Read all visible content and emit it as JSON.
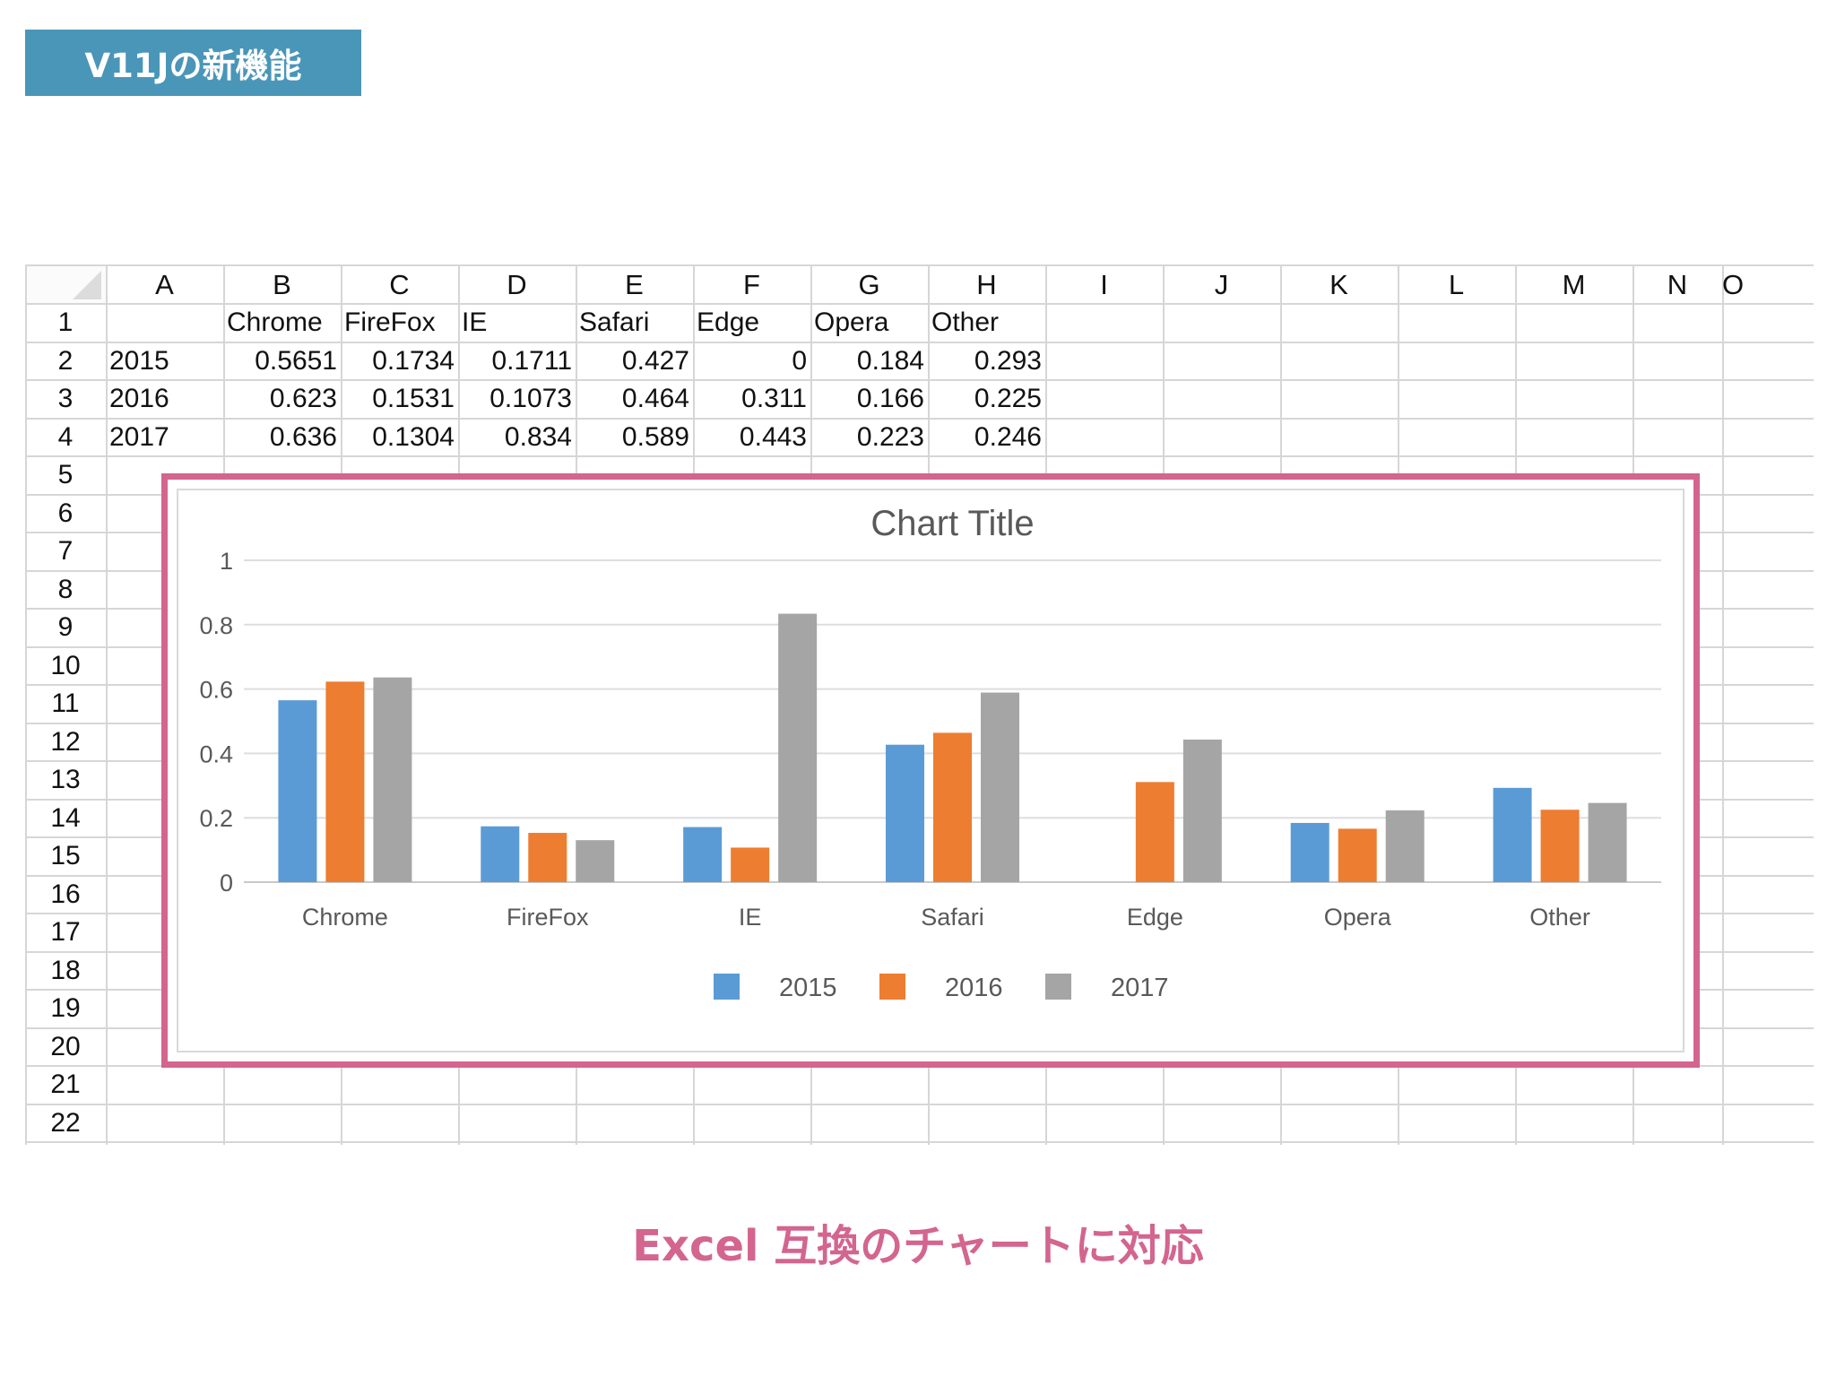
{
  "badge": {
    "label": "V11Jの新機能"
  },
  "sheet": {
    "columns": [
      "A",
      "B",
      "C",
      "D",
      "E",
      "F",
      "G",
      "H",
      "I",
      "J",
      "K",
      "L",
      "M",
      "N",
      "O"
    ],
    "rows": [
      "1",
      "2",
      "3",
      "4",
      "5",
      "6",
      "7",
      "8",
      "9",
      "10",
      "11",
      "12",
      "13",
      "14",
      "15",
      "16",
      "17",
      "18",
      "19",
      "20",
      "21",
      "22"
    ],
    "header_row": [
      "",
      "Chrome",
      "FireFox",
      "IE",
      "Safari",
      "Edge",
      "Opera",
      "Other"
    ],
    "data_rows": [
      [
        "2015",
        "0.5651",
        "0.1734",
        "0.1711",
        "0.427",
        "0",
        "0.184",
        "0.293"
      ],
      [
        "2016",
        "0.623",
        "0.1531",
        "0.1073",
        "0.464",
        "0.311",
        "0.166",
        "0.225"
      ],
      [
        "2017",
        "0.636",
        "0.1304",
        "0.834",
        "0.589",
        "0.443",
        "0.223",
        "0.246"
      ]
    ]
  },
  "chart_data": {
    "type": "bar",
    "title": "Chart Title",
    "categories": [
      "Chrome",
      "FireFox",
      "IE",
      "Safari",
      "Edge",
      "Opera",
      "Other"
    ],
    "series": [
      {
        "name": "2015",
        "color": "#5b9bd5",
        "values": [
          0.5651,
          0.1734,
          0.1711,
          0.427,
          0,
          0.184,
          0.293
        ]
      },
      {
        "name": "2016",
        "color": "#ed7d31",
        "values": [
          0.623,
          0.1531,
          0.1073,
          0.464,
          0.311,
          0.166,
          0.225
        ]
      },
      {
        "name": "2017",
        "color": "#a5a5a5",
        "values": [
          0.636,
          0.1304,
          0.834,
          0.589,
          0.443,
          0.223,
          0.246
        ]
      }
    ],
    "ylim": [
      0,
      1
    ],
    "yticks": [
      "0",
      "0.2",
      "0.4",
      "0.6",
      "0.8",
      "1"
    ],
    "grid": true,
    "legend": "bottom"
  },
  "footer": {
    "caption": "Excel 互換のチャートに対応"
  },
  "colors": {
    "badge": "#4a96b8",
    "accent": "#d3658f"
  }
}
